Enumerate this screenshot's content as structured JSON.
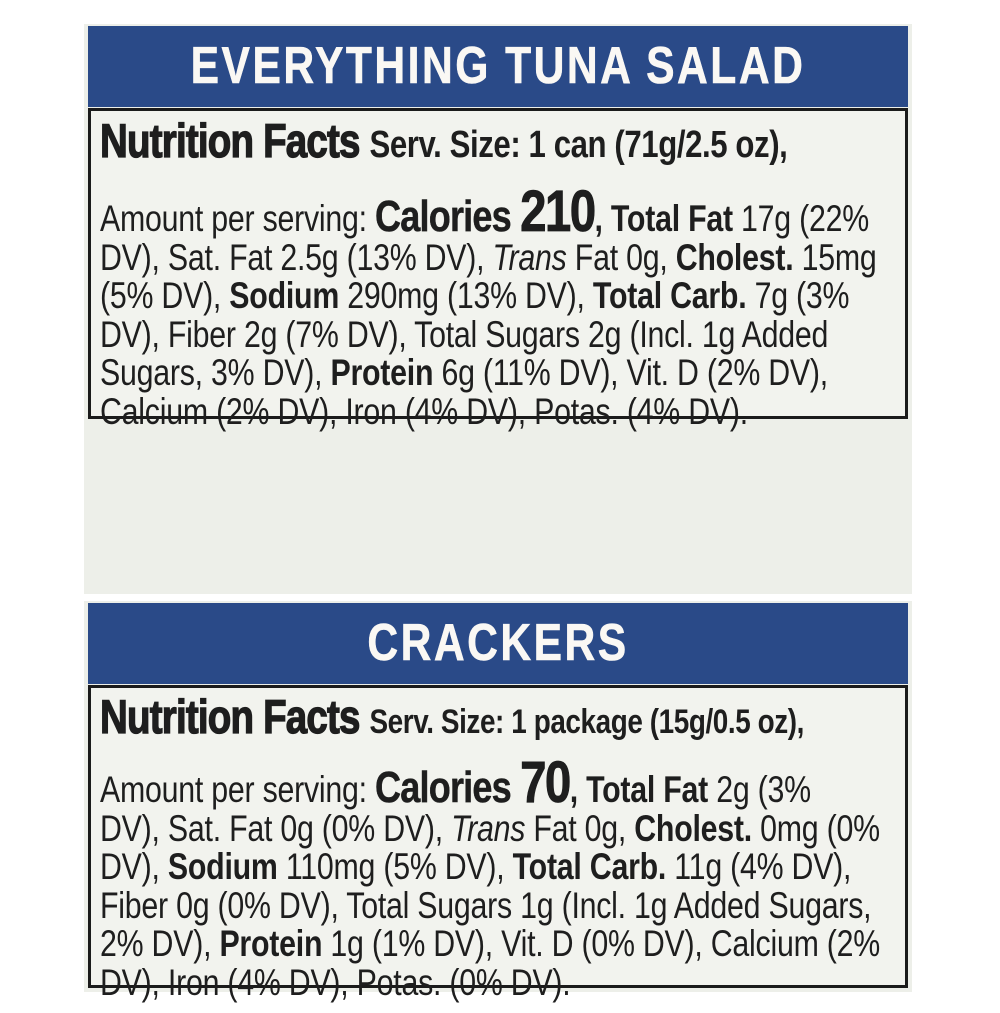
{
  "colors": {
    "header_blue": "#2a4a88",
    "header_text": "#faf8f4",
    "label_bg": "#edefe9",
    "panel_bg": "#f2f3ee",
    "border_black": "#1b1b1b",
    "text": "#1e1e1e"
  },
  "labels": [
    {
      "title": "EVERYTHING TUNA SALAD",
      "nf_title": "Nutrition Facts",
      "serving": "Serv. Size: 1 can (71g/2.5 oz),",
      "calories": "210",
      "lines": [
        [
          {
            "t": "Amount per serving: ",
            "s": "r"
          },
          {
            "t": "Calories ",
            "s": "cal"
          },
          {
            "t": "210",
            "s": "num"
          },
          {
            "t": ", ",
            "s": "b"
          },
          {
            "t": "Total Fat",
            "s": "b"
          },
          {
            "t": " 17g (22%",
            "s": "r"
          }
        ],
        [
          {
            "t": "DV), Sat. Fat 2.5g (13% DV), ",
            "s": "r"
          },
          {
            "t": "Trans",
            "s": "i"
          },
          {
            "t": " Fat 0g, ",
            "s": "r"
          },
          {
            "t": "Cholest.",
            "s": "b"
          },
          {
            "t": " 15mg",
            "s": "r"
          }
        ],
        [
          {
            "t": "(5% DV), ",
            "s": "r"
          },
          {
            "t": "Sodium",
            "s": "b"
          },
          {
            "t": " 290mg (13% DV), ",
            "s": "r"
          },
          {
            "t": "Total Carb.",
            "s": "b"
          },
          {
            "t": " 7g (3%",
            "s": "r"
          }
        ],
        [
          {
            "t": "DV), Fiber 2g (7% DV), Total Sugars 2g (Incl. 1g Added",
            "s": "r"
          }
        ],
        [
          {
            "t": "Sugars, 3% DV), ",
            "s": "r"
          },
          {
            "t": "Protein",
            "s": "b"
          },
          {
            "t": " 6g (11% DV), Vit. D (2% DV),",
            "s": "r"
          }
        ],
        [
          {
            "t": "Calcium (2% DV), Iron (4% DV), Potas. (4% DV).",
            "s": "r"
          }
        ]
      ]
    },
    {
      "title": "CRACKERS",
      "nf_title": "Nutrition Facts",
      "serving": "Serv. Size: 1 package (15g/0.5 oz),",
      "calories": "70",
      "lines": [
        [
          {
            "t": "Amount per serving: ",
            "s": "r"
          },
          {
            "t": "Calories ",
            "s": "cal"
          },
          {
            "t": "70",
            "s": "num"
          },
          {
            "t": ", ",
            "s": "b"
          },
          {
            "t": "Total Fat",
            "s": "b"
          },
          {
            "t": " 2g (3%",
            "s": "r"
          }
        ],
        [
          {
            "t": "DV), Sat. Fat 0g (0% DV), ",
            "s": "r"
          },
          {
            "t": "Trans",
            "s": "i"
          },
          {
            "t": " Fat 0g, ",
            "s": "r"
          },
          {
            "t": "Cholest.",
            "s": "b"
          },
          {
            "t": " 0mg (0%",
            "s": "r"
          }
        ],
        [
          {
            "t": "DV), ",
            "s": "r"
          },
          {
            "t": "Sodium",
            "s": "b"
          },
          {
            "t": " 110mg (5% DV), ",
            "s": "r"
          },
          {
            "t": "Total Carb.",
            "s": "b"
          },
          {
            "t": " 11g (4% DV),",
            "s": "r"
          }
        ],
        [
          {
            "t": "Fiber 0g (0% DV), Total Sugars 1g (Incl. 1g Added Sugars,",
            "s": "r"
          }
        ],
        [
          {
            "t": "2% DV), ",
            "s": "r"
          },
          {
            "t": "Protein",
            "s": "b"
          },
          {
            "t": " 1g (1% DV), Vit. D (0% DV), Calcium (2%",
            "s": "r"
          }
        ],
        [
          {
            "t": "DV), Iron (4% DV), Potas. (0% DV).",
            "s": "r"
          }
        ]
      ]
    }
  ]
}
